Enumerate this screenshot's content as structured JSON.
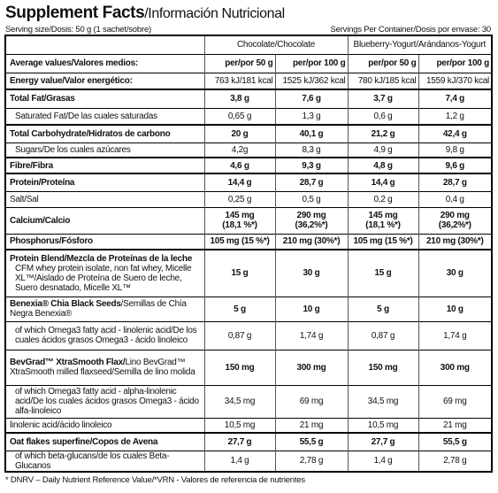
{
  "header": {
    "title": "Supplement Facts",
    "subtitle": "/Información Nutricional",
    "serving_size": "Serving size/Dosis: 50 g (1 sachet/sobre)",
    "servings_per_container": "Servings Per Container/Dosis por envase: 30"
  },
  "table": {
    "products": [
      "Chocolate/Chocolate",
      "Blueberry-Yogurt/Arándanos-Yogurt"
    ],
    "rows": [
      {
        "bold": "Average values/Valores medios:",
        "values": [
          "per/por 50 g",
          "per/por 100 g",
          "per/por 50 g",
          "per/por 100 g"
        ]
      },
      {
        "bold": "Energy value/Valor energético:",
        "values": [
          "763 kJ/181 kcal",
          "1525 kJ/362 kcal",
          "780 kJ/185 kcal",
          "1559 kJ/370 kcal"
        ]
      },
      {
        "bold": "Total Fat/Grasas",
        "values": [
          "3,8 g",
          "7,6 g",
          "3,7 g",
          "7,4 g"
        ]
      },
      {
        "text": "Saturated Fat/De las cuales saturadas",
        "values": [
          "0,65 g",
          "1,3 g",
          "0,6 g",
          "1,2 g"
        ]
      },
      {
        "bold": "Total Carbohydrate/Hidratos de carbono",
        "values": [
          "20 g",
          "40,1 g",
          "21,2 g",
          "42,4 g"
        ]
      },
      {
        "text": "Sugars/De los cuales azúcares",
        "values": [
          "4,2g",
          "8,3 g",
          "4,9 g",
          "9,8 g"
        ]
      },
      {
        "bold": "Fibre/Fibra",
        "values": [
          "4,6 g",
          "9,3 g",
          "4,8 g",
          "9,6 g"
        ]
      },
      {
        "bold": "Protein/Proteína",
        "values": [
          "14,4 g",
          "28,7 g",
          "14,4 g",
          "28,7 g"
        ]
      },
      {
        "text": "Salt/Sal",
        "values": [
          "0,25 g",
          "0,5 g",
          "0,2 g",
          "0,4 g"
        ]
      },
      {
        "bold": "Calcium/Calcio",
        "values": [
          [
            "145 mg",
            "(18,1 %*)"
          ],
          [
            "290 mg",
            "(36,2%*)"
          ],
          [
            "145 mg",
            "(18,1 %*)"
          ],
          [
            "290 mg",
            "(36,2%*)"
          ]
        ]
      },
      {
        "bold": "Phosphorus/Fósforo",
        "values": [
          "105 mg (15 %*)",
          "210 mg (30%*)",
          "105 mg (15 %*)",
          "210 mg (30%*)"
        ]
      },
      {
        "bold": "Protein Blend/Mezcla de Proteínas de la leche",
        "text": "CFM whey protein isolate, non fat whey, Micelle XL™/Aislado de Proteína de Suero de leche, Suero desnatado, Micelle XL™",
        "values": [
          "15 g",
          "30 g",
          "15 g",
          "30 g"
        ]
      },
      {
        "bold": "Benexia® Chia Black Seeds",
        "text": "/Semillas de Chía Negra Benexia®",
        "values": [
          "5 g",
          "10 g",
          "5 g",
          "10 g"
        ]
      },
      {
        "text": "of which Omega3 fatty acid - linolenic acid/De los cuales ácidos grasos Omega3 - ácido linoleico",
        "values": [
          "0,87 g",
          "1,74 g",
          "0,87 g",
          "1,74 g"
        ]
      },
      {
        "bold": "BevGrad™ XtraSmooth Flax/",
        "text": "Lino BevGrad™ XtraSmooth milled flaxseed/Semilla de lino molida",
        "values": [
          "150 mg",
          "300 mg",
          "150 mg",
          "300 mg"
        ]
      },
      {
        "text": "of which Omega3 fatty acid - alpha-linolenic acid/De los cuales ácidos grasos Omega3 - ácido alfa-linoleico",
        "values": [
          "34,5 mg",
          "69 mg",
          "34,5 mg",
          "69 mg"
        ]
      },
      {
        "text": "linolenic acid/ácido linoleico",
        "values": [
          "10,5 mg",
          "21 mg",
          "10,5 mg",
          "21 mg"
        ]
      },
      {
        "bold": "Oat flakes superfine/Copos de Avena",
        "values": [
          "27,7 g",
          "55,5 g",
          "27,7 g",
          "55,5 g"
        ]
      },
      {
        "text": "of which beta-glucans/de los cuales Beta-Glucanos",
        "values": [
          "1,4 g",
          "2,78 g",
          "1,4 g",
          "2,78 g"
        ]
      }
    ]
  },
  "footnote": "* DNRV – Daily Nutrient Reference Value/*VRN - Valores de referencia de nutrientes"
}
